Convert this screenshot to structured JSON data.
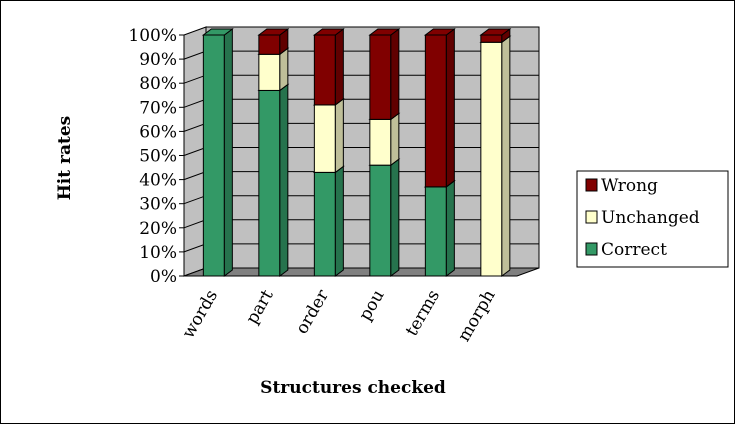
{
  "chart_data": {
    "type": "bar",
    "stacked": true,
    "three_d": true,
    "percent": true,
    "xlabel": "Structures checked",
    "ylabel": "Hit rates",
    "categories": [
      "words",
      "part",
      "order",
      "pou",
      "terms",
      "morph"
    ],
    "ylim": [
      0,
      100
    ],
    "ytick_labels": [
      "0%",
      "10%",
      "20%",
      "30%",
      "40%",
      "50%",
      "60%",
      "70%",
      "80%",
      "90%",
      "100%"
    ],
    "grid": true,
    "legend_position": "right",
    "series": [
      {
        "name": "Correct",
        "values": [
          100,
          77,
          43,
          46,
          37,
          0
        ],
        "color": "#339966"
      },
      {
        "name": "Unchanged",
        "values": [
          0,
          15,
          28,
          19,
          0,
          97
        ],
        "color": "#ffffcc"
      },
      {
        "name": "Wrong",
        "values": [
          0,
          8,
          29,
          35,
          63,
          3
        ],
        "color": "#800000"
      }
    ],
    "legend_order": [
      "Wrong",
      "Unchanged",
      "Correct"
    ]
  },
  "colors": {
    "wall": "#c0c0c0",
    "floor": "#808080",
    "grid": "#000000"
  }
}
